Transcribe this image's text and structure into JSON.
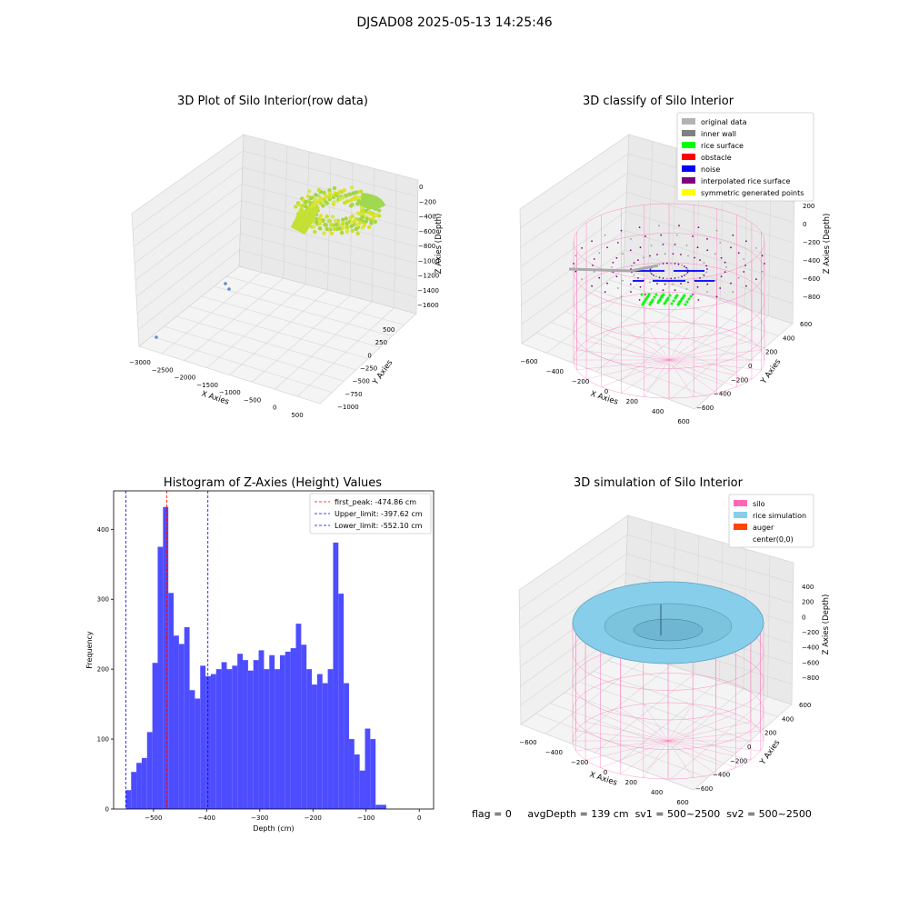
{
  "suptitle": "DJSAD08 2025-05-13 14:25:46",
  "panel1": {
    "title": "3D Plot of Silo Interior(row data)",
    "xlabel": "X Axies",
    "ylabel": "Y Axies",
    "zlabel": "Z Axies (Depth)",
    "xticks": [
      "−3000",
      "−2500",
      "−2000",
      "−1500",
      "−1000",
      "−500",
      "0",
      "500"
    ],
    "yticks": [
      "500",
      "250",
      "0",
      "−250",
      "−500",
      "−750",
      "−1000"
    ],
    "zticks": [
      "0",
      "−200",
      "−400",
      "−600",
      "−800",
      "−1000",
      "−1200",
      "−1400",
      "−1600"
    ]
  },
  "panel2": {
    "title": "3D classify of Silo Interior",
    "xlabel": "X Axies",
    "ylabel": "Y Axies",
    "zlabel": "Z Axies (Depth)",
    "xticks": [
      "−600",
      "−400",
      "−200",
      "0",
      "200",
      "400",
      "600"
    ],
    "yticks": [
      "600",
      "400",
      "200",
      "0",
      "−200",
      "−400",
      "−600"
    ],
    "zticks": [
      "200",
      "0",
      "−200",
      "−400",
      "−600",
      "−800"
    ],
    "legend": [
      {
        "label": "original data",
        "color": "#b3b3b3"
      },
      {
        "label": "inner wall",
        "color": "#808080"
      },
      {
        "label": "rice surface",
        "color": "#00ff00"
      },
      {
        "label": "obstacle",
        "color": "#ff0000"
      },
      {
        "label": "noise",
        "color": "#0000ff"
      },
      {
        "label": "interpolated rice surface",
        "color": "#800080"
      },
      {
        "label": "symmetric generated points",
        "color": "#ffff00"
      }
    ]
  },
  "panel4": {
    "title": "3D simulation of Silo Interior",
    "xlabel": "X Axies",
    "ylabel": "Y Axies",
    "zlabel": "Z Axies (Depth)",
    "xticks": [
      "−600",
      "−400",
      "−200",
      "0",
      "200",
      "400",
      "600"
    ],
    "yticks": [
      "600",
      "400",
      "200",
      "0",
      "−200",
      "−400",
      "−600"
    ],
    "zticks": [
      "400",
      "200",
      "0",
      "−200",
      "−400",
      "−600",
      "−800"
    ],
    "legend": [
      {
        "label": "silo",
        "color": "#ff69b4"
      },
      {
        "label": "rice simulation",
        "color": "#87ceeb"
      },
      {
        "label": "auger",
        "color": "#ff4500"
      },
      {
        "label": "center(0,0)",
        "color": "#ffffff"
      }
    ]
  },
  "chart_data": {
    "type": "bar",
    "title": "Histogram of Z-Axies (Height) Values",
    "xlabel": "Depth (cm)",
    "ylabel": "Frequency",
    "xlim": [
      -575,
      27
    ],
    "ylim": [
      0,
      455
    ],
    "xticks": [
      -500,
      -400,
      -300,
      -200,
      -100,
      0
    ],
    "xtick_labels": [
      "−500",
      "−400",
      "−300",
      "−200",
      "−100",
      "0"
    ],
    "yticks": [
      0,
      100,
      200,
      300,
      400
    ],
    "yticklabels": [
      "0",
      "100",
      "200",
      "300",
      "400"
    ],
    "bar_color": "#4d4dff",
    "bin_edges_start": -552.1,
    "bin_width": 10.0,
    "values": [
      27,
      53,
      66,
      73,
      110,
      209,
      375,
      432,
      309,
      248,
      236,
      260,
      170,
      158,
      205,
      190,
      193,
      200,
      210,
      200,
      205,
      222,
      213,
      198,
      213,
      227,
      200,
      220,
      200,
      220,
      225,
      230,
      265,
      235,
      200,
      178,
      193,
      180,
      200,
      381,
      308,
      180,
      100,
      78,
      55,
      115,
      100,
      6,
      6
    ],
    "vlines": [
      {
        "x": -474.86,
        "color": "#ff0000",
        "label": "first_peak: -474.86 cm"
      },
      {
        "x": -397.62,
        "color": "#0000ff",
        "label": "Upper_limit: -397.62 cm"
      },
      {
        "x": -552.1,
        "color": "#0000ff",
        "label": "Lower_limit: -552.10 cm"
      }
    ],
    "legend_position": "top-right"
  },
  "footer": {
    "flag": "flag = 0",
    "avg": "avgDepth = 139 cm",
    "sv1": "sv1 = 500~2500",
    "sv2": "sv2 = 500~2500"
  }
}
